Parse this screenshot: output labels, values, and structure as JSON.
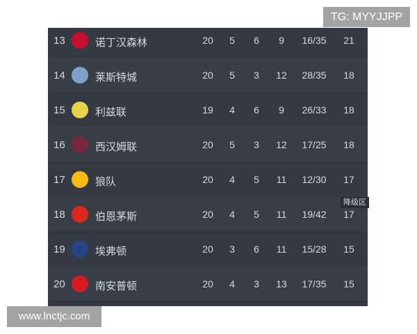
{
  "watermarks": {
    "tg": "TG: MYYJJPP",
    "site": "www.lnctjc.com"
  },
  "relegation_label": "降级区",
  "rows": [
    {
      "rank": "13",
      "team": "诺丁汉森林",
      "played": "20",
      "won": "5",
      "drawn": "6",
      "lost": "9",
      "goals": "16/35",
      "points": "21",
      "logo_color": "#c8102e"
    },
    {
      "rank": "14",
      "team": "莱斯特城",
      "played": "20",
      "won": "5",
      "drawn": "3",
      "lost": "12",
      "goals": "28/35",
      "points": "18",
      "logo_color": "#7fa0c8"
    },
    {
      "rank": "15",
      "team": "利兹联",
      "played": "19",
      "won": "4",
      "drawn": "6",
      "lost": "9",
      "goals": "26/33",
      "points": "18",
      "logo_color": "#e8d24a"
    },
    {
      "rank": "16",
      "team": "西汉姆联",
      "played": "20",
      "won": "5",
      "drawn": "3",
      "lost": "12",
      "goals": "17/25",
      "points": "18",
      "logo_color": "#7a263a"
    },
    {
      "rank": "17",
      "team": "狼队",
      "played": "20",
      "won": "4",
      "drawn": "5",
      "lost": "11",
      "goals": "12/30",
      "points": "17",
      "logo_color": "#fdb913"
    },
    {
      "rank": "18",
      "team": "伯恩茅斯",
      "played": "20",
      "won": "4",
      "drawn": "5",
      "lost": "11",
      "goals": "19/42",
      "points": "17",
      "logo_color": "#da291c"
    },
    {
      "rank": "19",
      "team": "埃弗顿",
      "played": "20",
      "won": "3",
      "drawn": "6",
      "lost": "11",
      "goals": "15/28",
      "points": "15",
      "logo_color": "#274488"
    },
    {
      "rank": "20",
      "team": "南安普顿",
      "played": "20",
      "won": "4",
      "drawn": "3",
      "lost": "13",
      "goals": "17/35",
      "points": "15",
      "logo_color": "#d71920"
    }
  ]
}
